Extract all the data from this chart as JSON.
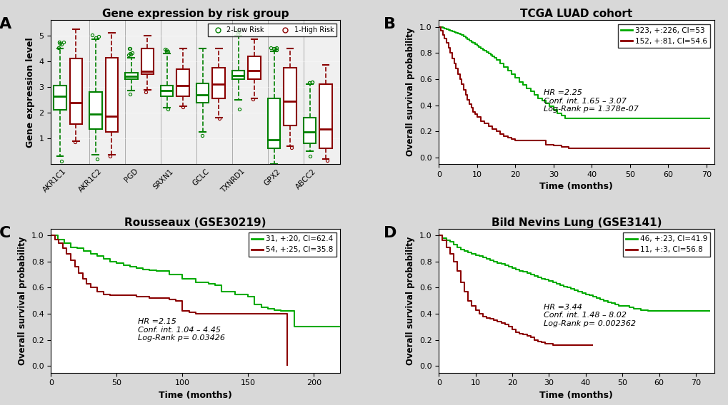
{
  "panel_A": {
    "title": "Gene expression by risk group",
    "ylabel": "Gene expression level",
    "genes": [
      "AKR1C1",
      "AKR1C2",
      "PGD",
      "SRXN1",
      "GCLC",
      "TXNRD1",
      "GPX2",
      "ABCC2"
    ],
    "low_risk": {
      "medians": [
        2.65,
        1.95,
        3.42,
        2.85,
        2.7,
        3.45,
        0.95,
        1.25
      ],
      "q1": [
        2.1,
        1.35,
        3.32,
        2.65,
        2.4,
        3.3,
        0.6,
        0.8
      ],
      "q3": [
        3.05,
        2.8,
        3.55,
        3.05,
        3.15,
        3.65,
        2.55,
        1.8
      ],
      "whislo": [
        0.3,
        0.35,
        2.85,
        2.2,
        1.25,
        2.5,
        0.0,
        0.5
      ],
      "whishi": [
        4.5,
        4.85,
        4.15,
        4.3,
        4.5,
        5.0,
        4.4,
        3.1
      ],
      "fliers_lo": [
        0.1,
        0.2,
        2.72,
        2.15,
        1.1,
        2.15,
        0.0,
        0.3
      ],
      "fliers_hi": [
        4.82,
        5.05,
        4.52,
        4.5,
        4.02,
        5.22,
        4.6,
        3.22
      ]
    },
    "high_risk": {
      "medians": [
        2.4,
        1.85,
        3.6,
        3.05,
        3.1,
        3.65,
        2.45,
        1.35
      ],
      "q1": [
        1.55,
        1.25,
        3.5,
        2.65,
        2.55,
        3.3,
        1.5,
        0.6
      ],
      "q3": [
        4.1,
        4.15,
        4.5,
        3.7,
        3.75,
        4.2,
        3.75,
        3.1
      ],
      "whislo": [
        0.9,
        0.35,
        2.9,
        2.25,
        1.8,
        2.55,
        0.7,
        0.2
      ],
      "whishi": [
        5.25,
        5.1,
        5.0,
        4.5,
        4.5,
        4.85,
        4.5,
        3.85
      ],
      "fliers_lo": [
        0.85,
        0.3,
        2.82,
        2.22,
        1.78,
        2.52,
        0.65,
        0.15
      ],
      "fliers_hi": []
    },
    "low_color": "#008000",
    "high_color": "#8B0000"
  },
  "panel_B": {
    "title": "TCGA LUAD cohort",
    "xlabel": "Time (months)",
    "ylabel": "Overall survival probability",
    "xlim": [
      0,
      72
    ],
    "ylim": [
      -0.05,
      1.05
    ],
    "xticks": [
      0,
      10,
      20,
      30,
      40,
      50,
      60,
      70
    ],
    "yticks": [
      0.0,
      0.2,
      0.4,
      0.6,
      0.8,
      1.0
    ],
    "legend_text": [
      "323, +:226, CI=53",
      "152, +:81, CI=54.6"
    ],
    "stats_text": "HR =2.25\nConf. int. 1.65 – 3.07\nLog-Rank p= 1.378e-07",
    "green_x": [
      0,
      0.5,
      1,
      1.5,
      2,
      2.5,
      3,
      3.5,
      4,
      4.5,
      5,
      5.5,
      6,
      6.5,
      7,
      7.5,
      8,
      8.5,
      9,
      9.5,
      10,
      10.5,
      11,
      11.5,
      12,
      12.5,
      13,
      13.5,
      14,
      14.5,
      15,
      16,
      17,
      18,
      19,
      20,
      21,
      22,
      23,
      24,
      25,
      26,
      27,
      28,
      29,
      30,
      31,
      32,
      33,
      34,
      35,
      40,
      45,
      50,
      55,
      60,
      65,
      71
    ],
    "green_y": [
      1.0,
      0.995,
      0.99,
      0.985,
      0.98,
      0.975,
      0.97,
      0.965,
      0.96,
      0.955,
      0.95,
      0.945,
      0.935,
      0.925,
      0.915,
      0.905,
      0.895,
      0.885,
      0.875,
      0.865,
      0.855,
      0.845,
      0.835,
      0.825,
      0.815,
      0.805,
      0.795,
      0.785,
      0.775,
      0.765,
      0.745,
      0.72,
      0.69,
      0.665,
      0.64,
      0.61,
      0.58,
      0.555,
      0.53,
      0.505,
      0.48,
      0.455,
      0.435,
      0.415,
      0.395,
      0.365,
      0.34,
      0.32,
      0.3,
      0.3,
      0.3,
      0.3,
      0.3,
      0.3,
      0.3,
      0.3,
      0.3,
      0.3
    ],
    "red_x": [
      0,
      0.5,
      1,
      1.5,
      2,
      2.5,
      3,
      3.5,
      4,
      4.5,
      5,
      5.5,
      6,
      6.5,
      7,
      7.5,
      8,
      8.5,
      9,
      9.5,
      10,
      11,
      12,
      13,
      14,
      15,
      16,
      17,
      18,
      19,
      20,
      22,
      24,
      26,
      28,
      30,
      32,
      34,
      35,
      40,
      45,
      50,
      55,
      60,
      65,
      71
    ],
    "red_y": [
      1.0,
      0.97,
      0.94,
      0.91,
      0.88,
      0.84,
      0.8,
      0.76,
      0.72,
      0.68,
      0.64,
      0.6,
      0.56,
      0.52,
      0.48,
      0.44,
      0.41,
      0.38,
      0.35,
      0.33,
      0.31,
      0.28,
      0.26,
      0.24,
      0.22,
      0.2,
      0.18,
      0.165,
      0.15,
      0.14,
      0.13,
      0.13,
      0.13,
      0.13,
      0.1,
      0.09,
      0.08,
      0.07,
      0.07,
      0.07,
      0.07,
      0.07,
      0.07,
      0.07,
      0.07,
      0.07
    ]
  },
  "panel_C": {
    "title": "Rousseaux (GSE30219)",
    "xlabel": "Time (months)",
    "ylabel": "Overall survival probability",
    "xlim": [
      0,
      220
    ],
    "ylim": [
      -0.05,
      1.05
    ],
    "xticks": [
      0,
      50,
      100,
      150,
      200
    ],
    "yticks": [
      0.0,
      0.2,
      0.4,
      0.6,
      0.8,
      1.0
    ],
    "legend_text": [
      "31, +:20, CI=62.4",
      "54, +:25, CI=35.8"
    ],
    "stats_text": "HR =2.15\nConf. int. 1.04 – 4.45\nLog-Rank p= 0.03426",
    "green_x": [
      0,
      5,
      10,
      15,
      20,
      25,
      30,
      35,
      40,
      45,
      50,
      55,
      60,
      65,
      70,
      75,
      80,
      90,
      100,
      110,
      120,
      125,
      130,
      140,
      150,
      155,
      160,
      165,
      170,
      175,
      180,
      185,
      190,
      195,
      200,
      205,
      210,
      215,
      220
    ],
    "green_y": [
      1.0,
      0.97,
      0.94,
      0.91,
      0.9,
      0.88,
      0.86,
      0.84,
      0.82,
      0.8,
      0.79,
      0.77,
      0.76,
      0.75,
      0.74,
      0.735,
      0.73,
      0.7,
      0.67,
      0.64,
      0.63,
      0.62,
      0.57,
      0.55,
      0.53,
      0.47,
      0.45,
      0.44,
      0.43,
      0.42,
      0.42,
      0.3,
      0.3,
      0.3,
      0.3,
      0.3,
      0.3,
      0.3,
      0.3
    ],
    "red_x": [
      0,
      3,
      6,
      9,
      12,
      15,
      18,
      21,
      24,
      27,
      30,
      35,
      40,
      45,
      50,
      55,
      60,
      65,
      70,
      75,
      80,
      85,
      90,
      95,
      100,
      105,
      110,
      115,
      120,
      125,
      130,
      135,
      140,
      145,
      150,
      155,
      160,
      165,
      170,
      175,
      180
    ],
    "red_y": [
      1.0,
      0.97,
      0.94,
      0.9,
      0.86,
      0.81,
      0.76,
      0.71,
      0.67,
      0.63,
      0.6,
      0.57,
      0.55,
      0.54,
      0.54,
      0.54,
      0.54,
      0.53,
      0.53,
      0.52,
      0.52,
      0.52,
      0.51,
      0.5,
      0.42,
      0.41,
      0.4,
      0.4,
      0.4,
      0.4,
      0.4,
      0.4,
      0.4,
      0.4,
      0.4,
      0.4,
      0.4,
      0.4,
      0.4,
      0.4,
      0.0
    ]
  },
  "panel_D": {
    "title": "Bild Nevins Lung (GSE3141)",
    "xlabel": "Time (months)",
    "ylabel": "Overall survival probability",
    "xlim": [
      0,
      75
    ],
    "ylim": [
      -0.05,
      1.05
    ],
    "xticks": [
      0,
      10,
      20,
      30,
      40,
      50,
      60,
      70
    ],
    "yticks": [
      0.0,
      0.2,
      0.4,
      0.6,
      0.8,
      1.0
    ],
    "legend_text": [
      "46, +:23, CI=41.9",
      "11, +:3, CI=56.8"
    ],
    "stats_text": "HR =3.44\nConf. int. 1.48 – 8.02\nLog-Rank p= 0.002362",
    "green_x": [
      0,
      1,
      2,
      3,
      4,
      5,
      6,
      7,
      8,
      9,
      10,
      11,
      12,
      13,
      14,
      15,
      16,
      17,
      18,
      19,
      20,
      21,
      22,
      23,
      24,
      25,
      26,
      27,
      28,
      29,
      30,
      31,
      32,
      33,
      34,
      35,
      36,
      37,
      38,
      39,
      40,
      41,
      42,
      43,
      44,
      45,
      46,
      47,
      48,
      49,
      50,
      51,
      52,
      53,
      54,
      55,
      56,
      57,
      58,
      59,
      60,
      61,
      62,
      63,
      64,
      65,
      66,
      67,
      68,
      69,
      70,
      71,
      72,
      73,
      74
    ],
    "green_y": [
      1.0,
      0.98,
      0.96,
      0.95,
      0.93,
      0.91,
      0.89,
      0.88,
      0.87,
      0.86,
      0.85,
      0.84,
      0.83,
      0.82,
      0.81,
      0.8,
      0.79,
      0.78,
      0.77,
      0.76,
      0.75,
      0.74,
      0.73,
      0.72,
      0.71,
      0.7,
      0.69,
      0.68,
      0.67,
      0.66,
      0.65,
      0.64,
      0.63,
      0.62,
      0.61,
      0.6,
      0.59,
      0.58,
      0.57,
      0.56,
      0.55,
      0.54,
      0.53,
      0.52,
      0.51,
      0.5,
      0.49,
      0.48,
      0.47,
      0.46,
      0.46,
      0.46,
      0.45,
      0.44,
      0.44,
      0.43,
      0.43,
      0.42,
      0.42,
      0.42,
      0.42,
      0.42,
      0.42,
      0.42,
      0.42,
      0.42,
      0.42,
      0.42,
      0.42,
      0.42,
      0.42,
      0.42,
      0.42,
      0.42,
      0.42
    ],
    "red_x": [
      0,
      1,
      2,
      3,
      4,
      5,
      6,
      7,
      8,
      9,
      10,
      11,
      12,
      13,
      14,
      15,
      16,
      17,
      18,
      19,
      20,
      21,
      22,
      23,
      24,
      25,
      26,
      27,
      28,
      29,
      30,
      31,
      32,
      33,
      34,
      35,
      36,
      37,
      38,
      39,
      40,
      41,
      42
    ],
    "red_y": [
      1.0,
      0.96,
      0.91,
      0.86,
      0.8,
      0.73,
      0.64,
      0.57,
      0.5,
      0.46,
      0.43,
      0.4,
      0.38,
      0.37,
      0.36,
      0.35,
      0.34,
      0.33,
      0.32,
      0.3,
      0.28,
      0.26,
      0.25,
      0.24,
      0.23,
      0.22,
      0.2,
      0.19,
      0.18,
      0.17,
      0.17,
      0.16,
      0.16,
      0.16,
      0.16,
      0.16,
      0.16,
      0.16,
      0.16,
      0.16,
      0.16,
      0.16,
      0.16
    ]
  },
  "green_color": "#00AA00",
  "dark_red_color": "#8B0000",
  "bg_color": "#d8d8d8"
}
